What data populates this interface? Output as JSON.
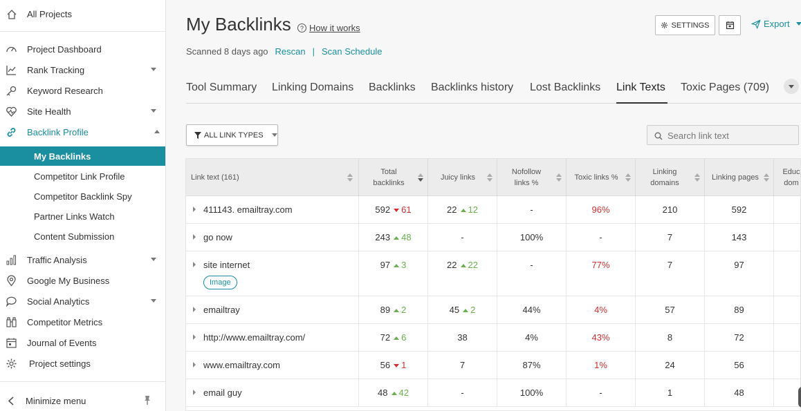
{
  "sidebar": {
    "all_projects": "All Projects",
    "items": [
      {
        "label": "Project Dashboard",
        "icon": "dashboard-icon",
        "caret": false
      },
      {
        "label": "Rank Tracking",
        "icon": "rank-chart-icon",
        "caret": true
      },
      {
        "label": "Keyword Research",
        "icon": "key-icon",
        "caret": false
      },
      {
        "label": "Site Health",
        "icon": "heartbeat-icon",
        "caret": true
      },
      {
        "label": "Backlink Profile",
        "icon": "link-icon",
        "caret": true
      }
    ],
    "sub_items": [
      {
        "label": "My Backlinks"
      },
      {
        "label": "Competitor Link Profile"
      },
      {
        "label": "Competitor Backlink Spy"
      },
      {
        "label": "Partner Links Watch"
      },
      {
        "label": "Content Submission"
      }
    ],
    "lower_items": [
      {
        "label": "Traffic Analysis",
        "icon": "bar-chart-icon",
        "caret": true
      },
      {
        "label": "Google My Business",
        "icon": "map-pin-icon",
        "caret": false
      },
      {
        "label": "Social Analytics",
        "icon": "speech-bubble-icon",
        "caret": true
      },
      {
        "label": "Competitor Metrics",
        "icon": "binoculars-icon",
        "caret": false
      },
      {
        "label": "Journal of Events",
        "icon": "calendar-icon",
        "caret": false
      },
      {
        "label": "Project settings",
        "icon": "gear-icon",
        "caret": false
      }
    ],
    "minimize": "Minimize menu",
    "accent": "#1a8fa0"
  },
  "header": {
    "title": "My Backlinks",
    "how_it_works": "How it works",
    "scanned": "Scanned 8 days ago",
    "rescan": "Rescan",
    "separator": "|",
    "scan_schedule": "Scan Schedule",
    "settings": "SETTINGS",
    "export": "Export"
  },
  "tabs": [
    {
      "label": "Tool Summary"
    },
    {
      "label": "Linking Domains"
    },
    {
      "label": "Backlinks"
    },
    {
      "label": "Backlinks history"
    },
    {
      "label": "Lost Backlinks"
    },
    {
      "label": "Link Texts"
    },
    {
      "label": "Toxic Pages (709)"
    }
  ],
  "filter": {
    "label": "ALL LINK TYPES"
  },
  "search": {
    "placeholder": "Search link text"
  },
  "table": {
    "columns": [
      {
        "label": "Link text (161)"
      },
      {
        "label": "Total backlinks"
      },
      {
        "label": "Juicy links"
      },
      {
        "label": "Nofollow links %"
      },
      {
        "label": "Toxic links %"
      },
      {
        "label": "Linking domains"
      },
      {
        "label": "Linking pages"
      },
      {
        "label": "Educ dom"
      }
    ],
    "rows": [
      {
        "text": "411143. emailtray.com",
        "total": "592",
        "total_delta": "61",
        "total_dir": "down",
        "juicy": "22",
        "juicy_delta": "12",
        "juicy_dir": "up",
        "nofollow": "-",
        "toxic": "96%",
        "domains": "210",
        "pages": "592",
        "tag": ""
      },
      {
        "text": "go now",
        "total": "243",
        "total_delta": "48",
        "total_dir": "up",
        "juicy": "-",
        "juicy_delta": "",
        "juicy_dir": "",
        "nofollow": "100%",
        "toxic": "-",
        "domains": "7",
        "pages": "143",
        "tag": ""
      },
      {
        "text": "site internet",
        "total": "97",
        "total_delta": "3",
        "total_dir": "up",
        "juicy": "22",
        "juicy_delta": "22",
        "juicy_dir": "up",
        "nofollow": "-",
        "toxic": "77%",
        "domains": "7",
        "pages": "97",
        "tag": "Image"
      },
      {
        "text": "emailtray",
        "total": "89",
        "total_delta": "2",
        "total_dir": "up",
        "juicy": "45",
        "juicy_delta": "2",
        "juicy_dir": "up",
        "nofollow": "44%",
        "toxic": "4%",
        "domains": "57",
        "pages": "89",
        "tag": ""
      },
      {
        "text": "http://www.emailtray.com/",
        "total": "72",
        "total_delta": "6",
        "total_dir": "up",
        "juicy": "38",
        "juicy_delta": "",
        "juicy_dir": "",
        "nofollow": "4%",
        "toxic": "43%",
        "domains": "8",
        "pages": "72",
        "tag": ""
      },
      {
        "text": "www.emailtray.com",
        "total": "56",
        "total_delta": "1",
        "total_dir": "down",
        "juicy": "7",
        "juicy_delta": "",
        "juicy_dir": "",
        "nofollow": "87%",
        "toxic": "1%",
        "domains": "24",
        "pages": "56",
        "tag": ""
      },
      {
        "text": "email guy",
        "total": "48",
        "total_delta": "42",
        "total_dir": "up",
        "juicy": "-",
        "juicy_delta": "",
        "juicy_dir": "",
        "nofollow": "100%",
        "toxic": "-",
        "domains": "1",
        "pages": "48",
        "tag": ""
      }
    ]
  }
}
